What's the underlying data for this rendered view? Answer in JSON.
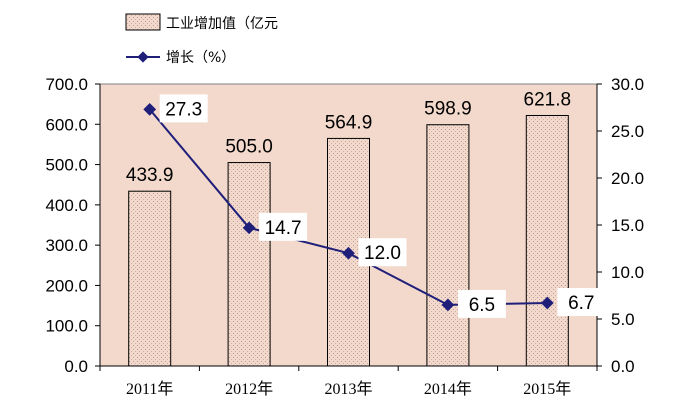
{
  "chart_data": {
    "type": "bar",
    "categories": [
      "2011年",
      "2012年",
      "2013年",
      "2014年",
      "2015年"
    ],
    "series": [
      {
        "name": "工业增加值（亿元",
        "type": "bar",
        "axis": "left",
        "values": [
          433.9,
          505.0,
          564.9,
          598.9,
          621.8
        ],
        "color": "#f2d9cc"
      },
      {
        "name": "增长（%）",
        "type": "line",
        "axis": "right",
        "values": [
          27.3,
          14.7,
          12.0,
          6.5,
          6.7
        ],
        "color": "#1f1f7a"
      }
    ],
    "y_left": {
      "min": 0,
      "max": 700,
      "ticks": [
        "0.0",
        "100.0",
        "200.0",
        "300.0",
        "400.0",
        "500.0",
        "600.0",
        "700.0"
      ]
    },
    "y_right": {
      "min": 0,
      "max": 30,
      "ticks": [
        "0.0",
        "5.0",
        "10.0",
        "15.0",
        "20.0",
        "25.0",
        "30.0"
      ]
    },
    "bar_labels": [
      "433.9",
      "505.0",
      "564.9",
      "598.9",
      "621.8"
    ],
    "line_labels": [
      "27.3",
      "14.7",
      "12.0",
      "6.5",
      "6.7"
    ],
    "legend_position": "top-left",
    "plot_background": "#f2d9cc",
    "grid": false
  }
}
